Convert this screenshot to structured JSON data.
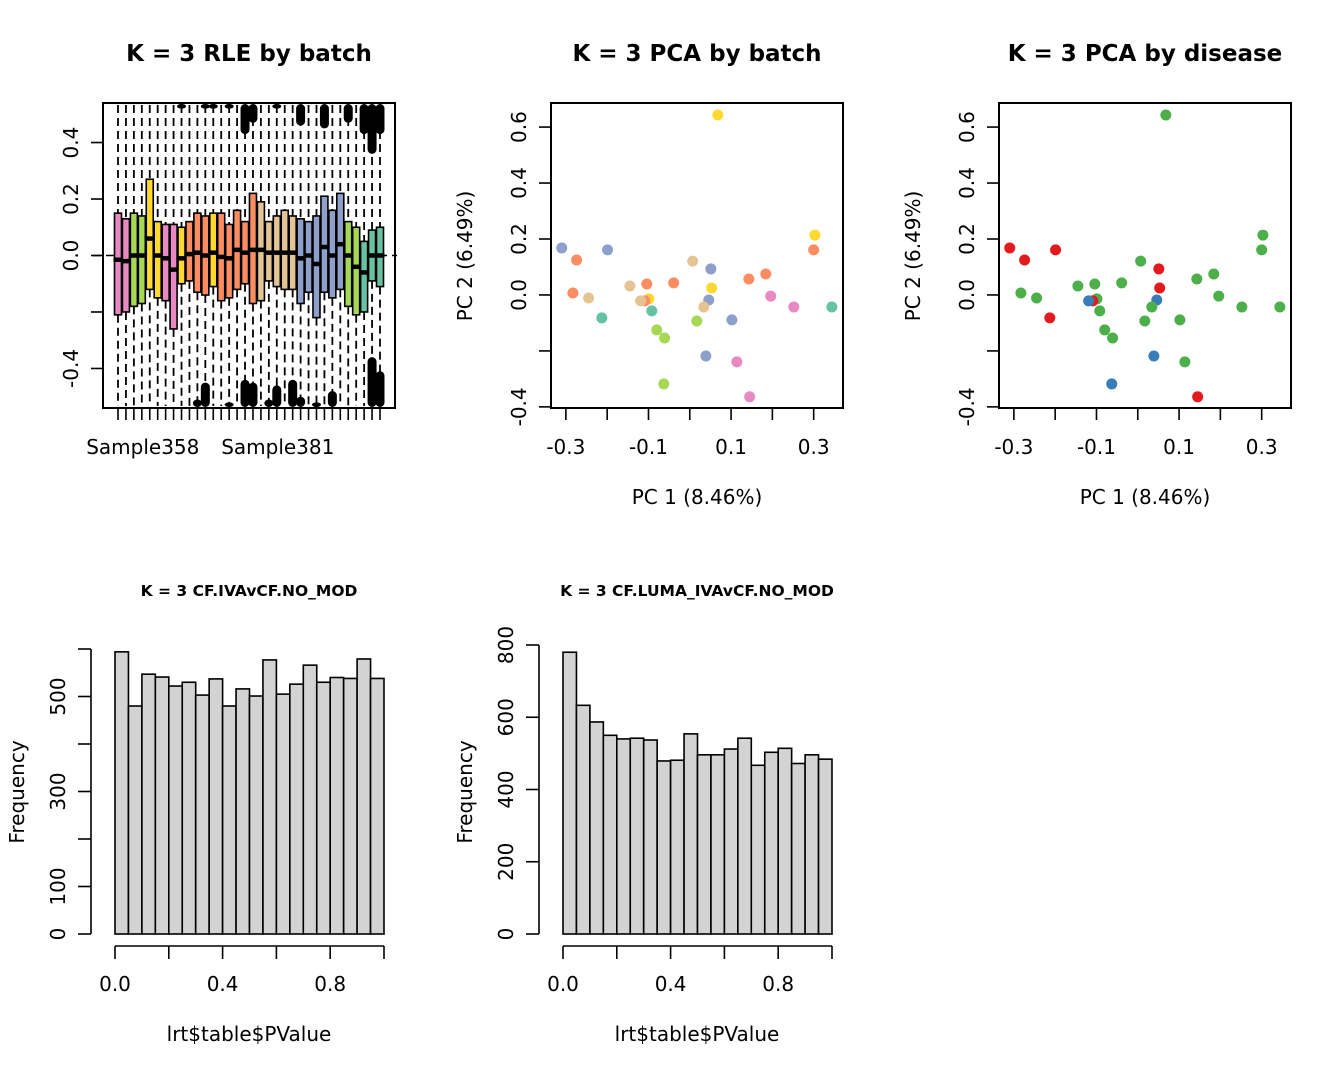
{
  "chart_data": [
    {
      "id": "rle",
      "type": "boxplot",
      "title": "K = 3 RLE by batch",
      "xlabel": "",
      "ylabel": "",
      "ylim": [
        -0.54,
        0.54
      ],
      "yticks": [
        -0.4,
        -0.2,
        0.0,
        0.2,
        0.4
      ],
      "ytick_labels": [
        "-0.4",
        "",
        "0.0",
        "0.2",
        "0.4"
      ],
      "xtick_labels": [
        {
          "index": 3,
          "label": "Sample358"
        },
        {
          "index": 20,
          "label": "Sample381"
        }
      ],
      "reference_line": 0.0,
      "batch_colors": {
        "pink": "#E78AC3",
        "green": "#A6D854",
        "yellow": "#FFD92F",
        "orange": "#FC8D62",
        "tan": "#E5C494",
        "blue": "#8DA0CB",
        "teal": "#66C2A5"
      },
      "boxes": [
        {
          "batch": "pink",
          "q1": -0.21,
          "median": -0.015,
          "q3": 0.15
        },
        {
          "batch": "pink",
          "q1": -0.2,
          "median": -0.02,
          "q3": 0.13
        },
        {
          "batch": "green",
          "q1": -0.18,
          "median": 0.0,
          "q3": 0.15
        },
        {
          "batch": "green",
          "q1": -0.17,
          "median": 0.0,
          "q3": 0.14
        },
        {
          "batch": "yellow",
          "q1": -0.12,
          "median": 0.06,
          "q3": 0.27
        },
        {
          "batch": "yellow",
          "q1": -0.15,
          "median": 0.0,
          "q3": 0.12
        },
        {
          "batch": "pink",
          "q1": -0.16,
          "median": -0.01,
          "q3": 0.11
        },
        {
          "batch": "pink",
          "q1": -0.26,
          "median": -0.05,
          "q3": 0.11
        },
        {
          "batch": "yellow",
          "q1": -0.1,
          "median": -0.01,
          "q3": 0.1
        },
        {
          "batch": "orange",
          "q1": -0.09,
          "median": 0.005,
          "q3": 0.12
        },
        {
          "batch": "orange",
          "q1": -0.13,
          "median": 0.01,
          "q3": 0.15
        },
        {
          "batch": "orange",
          "q1": -0.14,
          "median": 0.0,
          "q3": 0.14
        },
        {
          "batch": "yellow",
          "q1": -0.11,
          "median": 0.01,
          "q3": 0.15
        },
        {
          "batch": "orange",
          "q1": -0.16,
          "median": -0.005,
          "q3": 0.15
        },
        {
          "batch": "orange",
          "q1": -0.15,
          "median": -0.01,
          "q3": 0.11
        },
        {
          "batch": "orange",
          "q1": -0.12,
          "median": 0.02,
          "q3": 0.16
        },
        {
          "batch": "orange",
          "q1": -0.1,
          "median": 0.01,
          "q3": 0.12
        },
        {
          "batch": "orange",
          "q1": -0.17,
          "median": 0.02,
          "q3": 0.22
        },
        {
          "batch": "tan",
          "q1": -0.16,
          "median": 0.02,
          "q3": 0.19
        },
        {
          "batch": "tan",
          "q1": -0.09,
          "median": 0.01,
          "q3": 0.12
        },
        {
          "batch": "tan",
          "q1": -0.11,
          "median": 0.01,
          "q3": 0.14
        },
        {
          "batch": "tan",
          "q1": -0.12,
          "median": 0.01,
          "q3": 0.16
        },
        {
          "batch": "tan",
          "q1": -0.12,
          "median": 0.01,
          "q3": 0.14
        },
        {
          "batch": "blue",
          "q1": -0.17,
          "median": -0.01,
          "q3": 0.13
        },
        {
          "batch": "blue",
          "q1": -0.13,
          "median": 0.0,
          "q3": 0.12
        },
        {
          "batch": "blue",
          "q1": -0.22,
          "median": -0.03,
          "q3": 0.14
        },
        {
          "batch": "blue",
          "q1": -0.13,
          "median": 0.03,
          "q3": 0.21
        },
        {
          "batch": "blue",
          "q1": -0.15,
          "median": 0.0,
          "q3": 0.16
        },
        {
          "batch": "blue",
          "q1": -0.12,
          "median": 0.04,
          "q3": 0.22
        },
        {
          "batch": "green",
          "q1": -0.18,
          "median": 0.0,
          "q3": 0.12
        },
        {
          "batch": "green",
          "q1": -0.21,
          "median": -0.04,
          "q3": 0.1
        },
        {
          "batch": "teal",
          "q1": -0.2,
          "median": -0.06,
          "q3": 0.05
        },
        {
          "batch": "teal",
          "q1": -0.09,
          "median": 0.0,
          "q3": 0.09
        },
        {
          "batch": "teal",
          "q1": -0.11,
          "median": 0.0,
          "q3": 0.1
        }
      ],
      "outlier_clusters": [
        {
          "index": 11,
          "side": "top",
          "extent": 0.52
        },
        {
          "index": 16,
          "side": "top",
          "extent": 0.43
        },
        {
          "index": 17,
          "side": "top",
          "extent": 0.47
        },
        {
          "index": 20,
          "side": "top",
          "extent": 0.52
        },
        {
          "index": 23,
          "side": "top",
          "extent": 0.46
        },
        {
          "index": 26,
          "side": "top",
          "extent": 0.45
        },
        {
          "index": 29,
          "side": "top",
          "extent": 0.47
        },
        {
          "index": 31,
          "side": "top",
          "extent": 0.43
        },
        {
          "index": 32,
          "side": "top",
          "extent": 0.36
        },
        {
          "index": 33,
          "side": "top",
          "extent": 0.43
        },
        {
          "index": 8,
          "side": "top",
          "extent": 0.52
        },
        {
          "index": 12,
          "side": "top",
          "extent": 0.52
        },
        {
          "index": 14,
          "side": "top",
          "extent": 0.52
        },
        {
          "index": 16,
          "side": "bottom",
          "extent": -0.44
        },
        {
          "index": 17,
          "side": "bottom",
          "extent": -0.45
        },
        {
          "index": 10,
          "side": "bottom",
          "extent": -0.51
        },
        {
          "index": 11,
          "side": "bottom",
          "extent": -0.45
        },
        {
          "index": 22,
          "side": "bottom",
          "extent": -0.44
        },
        {
          "index": 23,
          "side": "bottom",
          "extent": -0.5
        },
        {
          "index": 25,
          "side": "bottom",
          "extent": -0.52
        },
        {
          "index": 27,
          "side": "bottom",
          "extent": -0.48
        },
        {
          "index": 32,
          "side": "bottom",
          "extent": -0.36
        },
        {
          "index": 33,
          "side": "bottom",
          "extent": -0.41
        },
        {
          "index": 14,
          "side": "bottom",
          "extent": -0.52
        },
        {
          "index": 19,
          "side": "bottom",
          "extent": -0.51
        },
        {
          "index": 20,
          "side": "bottom",
          "extent": -0.46
        }
      ]
    },
    {
      "id": "pca_batch",
      "type": "scatter",
      "title": "K = 3 PCA by batch",
      "xlabel": "PC 1 (8.46%)",
      "ylabel": "PC 2 (6.49%)",
      "xlim": [
        -0.336,
        0.371
      ],
      "ylim": [
        -0.404,
        0.686
      ],
      "xticks": [
        -0.3,
        -0.2,
        -0.1,
        0.0,
        0.1,
        0.2,
        0.3
      ],
      "xtick_labels": [
        "-0.3",
        "",
        "-0.1",
        "",
        "0.1",
        "",
        "0.3"
      ],
      "yticks": [
        -0.4,
        -0.2,
        0.0,
        0.2,
        0.4,
        0.6
      ],
      "ytick_labels": [
        "-0.4",
        "",
        "0.0",
        "0.2",
        "0.4",
        "0.6"
      ]
    },
    {
      "id": "pca_disease",
      "type": "scatter",
      "title": "K = 3 PCA by disease",
      "xlabel": "PC 1 (8.46%)",
      "ylabel": "PC 2 (6.49%)",
      "xlim": [
        -0.336,
        0.371
      ],
      "ylim": [
        -0.404,
        0.686
      ],
      "xticks": [
        -0.3,
        -0.2,
        -0.1,
        0.0,
        0.1,
        0.2,
        0.3
      ],
      "xtick_labels": [
        "-0.3",
        "",
        "-0.1",
        "",
        "0.1",
        "",
        "0.3"
      ],
      "yticks": [
        -0.4,
        -0.2,
        0.0,
        0.2,
        0.4,
        0.6
      ],
      "ytick_labels": [
        "-0.4",
        "",
        "0.0",
        "0.2",
        "0.4",
        "0.6"
      ],
      "disease_colors": {
        "red": "#E41A1C",
        "blue": "#377EB8",
        "green": "#4DAF4A"
      }
    },
    {
      "id": "hist1",
      "type": "bar",
      "title": "K = 3 CF.IVAvCF.NO_MOD",
      "xlabel": "lrt$table$PValue",
      "ylabel": "Frequency",
      "xlim": [
        0,
        1
      ],
      "ylim": [
        0,
        600
      ],
      "bin_width": 0.05,
      "xticks": [
        0.0,
        0.2,
        0.4,
        0.6,
        0.8,
        1.0
      ],
      "xtick_labels": [
        "0.0",
        "",
        "0.4",
        "",
        "0.8",
        ""
      ],
      "yticks": [
        0,
        100,
        200,
        300,
        400,
        500,
        600
      ],
      "ytick_labels": [
        "0",
        "100",
        "",
        "300",
        "",
        "500",
        ""
      ],
      "values": [
        594,
        480,
        547,
        541,
        522,
        530,
        503,
        537,
        480,
        516,
        501,
        577,
        505,
        526,
        566,
        530,
        540,
        538,
        579,
        538
      ],
      "fill": "#D3D3D3"
    },
    {
      "id": "hist2",
      "type": "bar",
      "title": "K = 3 CF.LUMA_IVAvCF.NO_MOD",
      "xlabel": "lrt$table$PValue",
      "ylabel": "Frequency",
      "xlim": [
        0,
        1
      ],
      "ylim": [
        0,
        800
      ],
      "bin_width": 0.05,
      "xticks": [
        0.0,
        0.2,
        0.4,
        0.6,
        0.8,
        1.0
      ],
      "xtick_labels": [
        "0.0",
        "",
        "0.4",
        "",
        "0.8",
        ""
      ],
      "yticks": [
        0,
        200,
        400,
        600,
        800
      ],
      "ytick_labels": [
        "0",
        "200",
        "400",
        "600",
        "800"
      ],
      "values": [
        780,
        633,
        587,
        550,
        540,
        542,
        537,
        479,
        481,
        554,
        496,
        496,
        512,
        542,
        467,
        503,
        514,
        472,
        496,
        484
      ],
      "fill": "#D3D3D3"
    }
  ],
  "pca_points": [
    {
      "pc1": 0.068,
      "pc2": 0.643,
      "batch": "yellow",
      "disease": "green"
    },
    {
      "pc1": -0.31,
      "pc2": 0.168,
      "batch": "blue",
      "disease": "red"
    },
    {
      "pc1": -0.274,
      "pc2": 0.125,
      "batch": "orange",
      "disease": "red"
    },
    {
      "pc1": -0.199,
      "pc2": 0.161,
      "batch": "blue",
      "disease": "red"
    },
    {
      "pc1": 0.303,
      "pc2": 0.214,
      "batch": "yellow",
      "disease": "green"
    },
    {
      "pc1": 0.3,
      "pc2": 0.161,
      "batch": "orange",
      "disease": "green"
    },
    {
      "pc1": 0.007,
      "pc2": 0.121,
      "batch": "tan",
      "disease": "green"
    },
    {
      "pc1": 0.051,
      "pc2": 0.093,
      "batch": "blue",
      "disease": "red"
    },
    {
      "pc1": -0.283,
      "pc2": 0.007,
      "batch": "orange",
      "disease": "green"
    },
    {
      "pc1": -0.245,
      "pc2": -0.011,
      "batch": "tan",
      "disease": "green"
    },
    {
      "pc1": -0.145,
      "pc2": 0.032,
      "batch": "tan",
      "disease": "green"
    },
    {
      "pc1": -0.104,
      "pc2": 0.039,
      "batch": "orange",
      "disease": "green"
    },
    {
      "pc1": -0.039,
      "pc2": 0.043,
      "batch": "orange",
      "disease": "green"
    },
    {
      "pc1": 0.053,
      "pc2": 0.025,
      "batch": "yellow",
      "disease": "red"
    },
    {
      "pc1": 0.143,
      "pc2": 0.057,
      "batch": "orange",
      "disease": "green"
    },
    {
      "pc1": 0.184,
      "pc2": 0.075,
      "batch": "orange",
      "disease": "green"
    },
    {
      "pc1": -0.099,
      "pc2": -0.014,
      "batch": "yellow",
      "disease": "green"
    },
    {
      "pc1": -0.109,
      "pc2": -0.021,
      "batch": "orange",
      "disease": "red"
    },
    {
      "pc1": -0.119,
      "pc2": -0.021,
      "batch": "tan",
      "disease": "blue"
    },
    {
      "pc1": 0.046,
      "pc2": -0.018,
      "batch": "blue",
      "disease": "blue"
    },
    {
      "pc1": 0.034,
      "pc2": -0.043,
      "batch": "tan",
      "disease": "green"
    },
    {
      "pc1": 0.196,
      "pc2": -0.004,
      "batch": "pink",
      "disease": "green"
    },
    {
      "pc1": 0.252,
      "pc2": -0.043,
      "batch": "pink",
      "disease": "green"
    },
    {
      "pc1": 0.344,
      "pc2": -0.043,
      "batch": "teal",
      "disease": "green"
    },
    {
      "pc1": -0.213,
      "pc2": -0.082,
      "batch": "teal",
      "disease": "red"
    },
    {
      "pc1": -0.092,
      "pc2": -0.057,
      "batch": "teal",
      "disease": "green"
    },
    {
      "pc1": 0.017,
      "pc2": -0.093,
      "batch": "green",
      "disease": "green"
    },
    {
      "pc1": 0.102,
      "pc2": -0.089,
      "batch": "blue",
      "disease": "green"
    },
    {
      "pc1": -0.08,
      "pc2": -0.125,
      "batch": "green",
      "disease": "green"
    },
    {
      "pc1": -0.061,
      "pc2": -0.154,
      "batch": "green",
      "disease": "green"
    },
    {
      "pc1": 0.039,
      "pc2": -0.218,
      "batch": "blue",
      "disease": "blue"
    },
    {
      "pc1": 0.114,
      "pc2": -0.239,
      "batch": "pink",
      "disease": "green"
    },
    {
      "pc1": -0.063,
      "pc2": -0.318,
      "batch": "green",
      "disease": "blue"
    },
    {
      "pc1": 0.145,
      "pc2": -0.364,
      "batch": "pink",
      "disease": "red"
    }
  ]
}
